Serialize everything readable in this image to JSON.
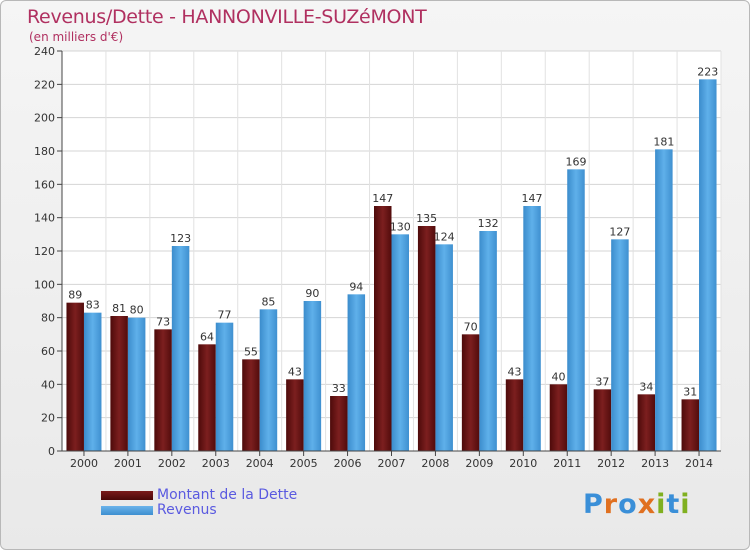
{
  "header": {
    "title": "Revenus/Dette - HANNONVILLE-SUZéMONT",
    "unit": "(en milliers d'€)"
  },
  "legend": {
    "debt_label": "Montant de la Dette",
    "revenue_label": "Revenus"
  },
  "logo": {
    "letters": [
      "P",
      "r",
      "o",
      "x",
      "i",
      "t",
      "i"
    ],
    "colors": [
      "#3a8fd8",
      "#e07020",
      "#3a8fd8",
      "#e07020",
      "#80b020",
      "#3a8fd8",
      "#80b020"
    ]
  },
  "colors": {
    "debt": "#6e1515",
    "revenue": "#4fa3e3",
    "title": "#b03060",
    "legend_text": "#5a5ae0"
  },
  "chart_data": {
    "type": "bar",
    "title": "Revenus/Dette - HANNONVILLE-SUZéMONT",
    "ylabel": "(en milliers d'€)",
    "xlabel": "",
    "ylim": [
      0,
      240
    ],
    "yticks": [
      0,
      20,
      40,
      60,
      80,
      100,
      120,
      140,
      160,
      180,
      200,
      220,
      240
    ],
    "grid": true,
    "legend_position": "bottom-left",
    "categories": [
      "2000",
      "2001",
      "2002",
      "2003",
      "2004",
      "2005",
      "2006",
      "2007",
      "2008",
      "2009",
      "2010",
      "2011",
      "2012",
      "2013",
      "2014"
    ],
    "series": [
      {
        "name": "Montant de la Dette",
        "values": [
          89,
          81,
          73,
          64,
          55,
          43,
          33,
          147,
          135,
          70,
          43,
          40,
          37,
          34,
          31
        ]
      },
      {
        "name": "Revenus",
        "values": [
          83,
          80,
          123,
          77,
          85,
          90,
          94,
          130,
          124,
          132,
          147,
          169,
          127,
          181,
          223
        ]
      }
    ]
  }
}
